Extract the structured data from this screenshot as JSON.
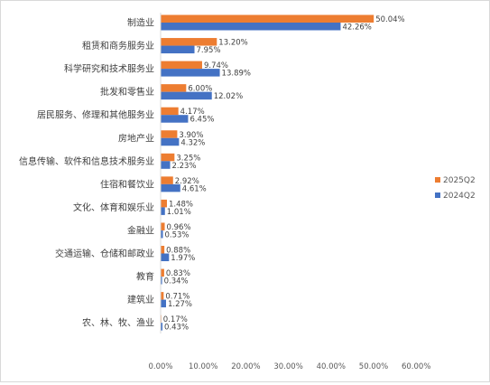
{
  "chart_data": {
    "type": "bar",
    "orientation": "horizontal",
    "categories": [
      "制造业",
      "租赁和商务服务业",
      "科学研究和技术服务业",
      "批发和零售业",
      "居民服务、修理和其他服务业",
      "房地产业",
      "信息传输、软件和信息技术服务业",
      "住宿和餐饮业",
      "文化、体育和娱乐业",
      "金融业",
      "交通运输、仓储和邮政业",
      "教育",
      "建筑业",
      "农、林、牧、渔业"
    ],
    "series": [
      {
        "name": "2025Q2",
        "color": "#ED7D31",
        "values": [
          50.04,
          13.2,
          9.74,
          6.0,
          4.17,
          3.9,
          3.25,
          2.92,
          1.48,
          0.96,
          0.88,
          0.83,
          0.71,
          0.17
        ],
        "labels": [
          "50.04%",
          "13.20%",
          "9.74%",
          "6.00%",
          "4.17%",
          "3.90%",
          "3.25%",
          "2.92%",
          "1.48%",
          "0.96%",
          "0.88%",
          "0.83%",
          "0.71%",
          "0.17%"
        ]
      },
      {
        "name": "2024Q2",
        "color": "#4472C4",
        "values": [
          42.26,
          7.95,
          13.89,
          12.02,
          6.45,
          4.32,
          2.23,
          4.61,
          1.01,
          0.53,
          1.97,
          0.34,
          1.27,
          0.43
        ],
        "labels": [
          "42.26%",
          "7.95%",
          "13.89%",
          "12.02%",
          "6.45%",
          "4.32%",
          "2.23%",
          "4.61%",
          "1.01%",
          "0.53%",
          "1.97%",
          "0.34%",
          "1.27%",
          "0.43%"
        ]
      }
    ],
    "xlim": [
      0,
      60
    ],
    "xticks": [
      0,
      10,
      20,
      30,
      40,
      50,
      60
    ],
    "xtick_labels": [
      "0.00%",
      "10.00%",
      "20.00%",
      "30.00%",
      "40.00%",
      "50.00%",
      "60.00%"
    ],
    "grid": false,
    "legend": "right"
  }
}
